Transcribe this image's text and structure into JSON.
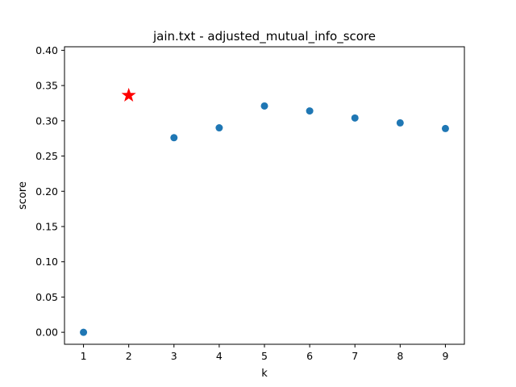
{
  "chart_data": {
    "type": "scatter",
    "title": "jain.txt - adjusted_mutual_info_score",
    "xlabel": "k",
    "ylabel": "score",
    "xlim": [
      0.58,
      9.42
    ],
    "ylim": [
      -0.017,
      0.405
    ],
    "xticks": [
      "1",
      "2",
      "3",
      "4",
      "5",
      "6",
      "7",
      "8",
      "9"
    ],
    "yticks": [
      "0.00",
      "0.05",
      "0.10",
      "0.15",
      "0.20",
      "0.25",
      "0.30",
      "0.35",
      "0.40"
    ],
    "grid": false,
    "x": [
      1,
      3,
      4,
      5,
      6,
      7,
      8,
      9
    ],
    "y": [
      0.0,
      0.276,
      0.29,
      0.321,
      0.314,
      0.304,
      0.297,
      0.289
    ],
    "highlight": {
      "x": 2,
      "y": 0.336,
      "marker": "star",
      "color": "#ff0000"
    },
    "point_color": "#1f77b4"
  }
}
